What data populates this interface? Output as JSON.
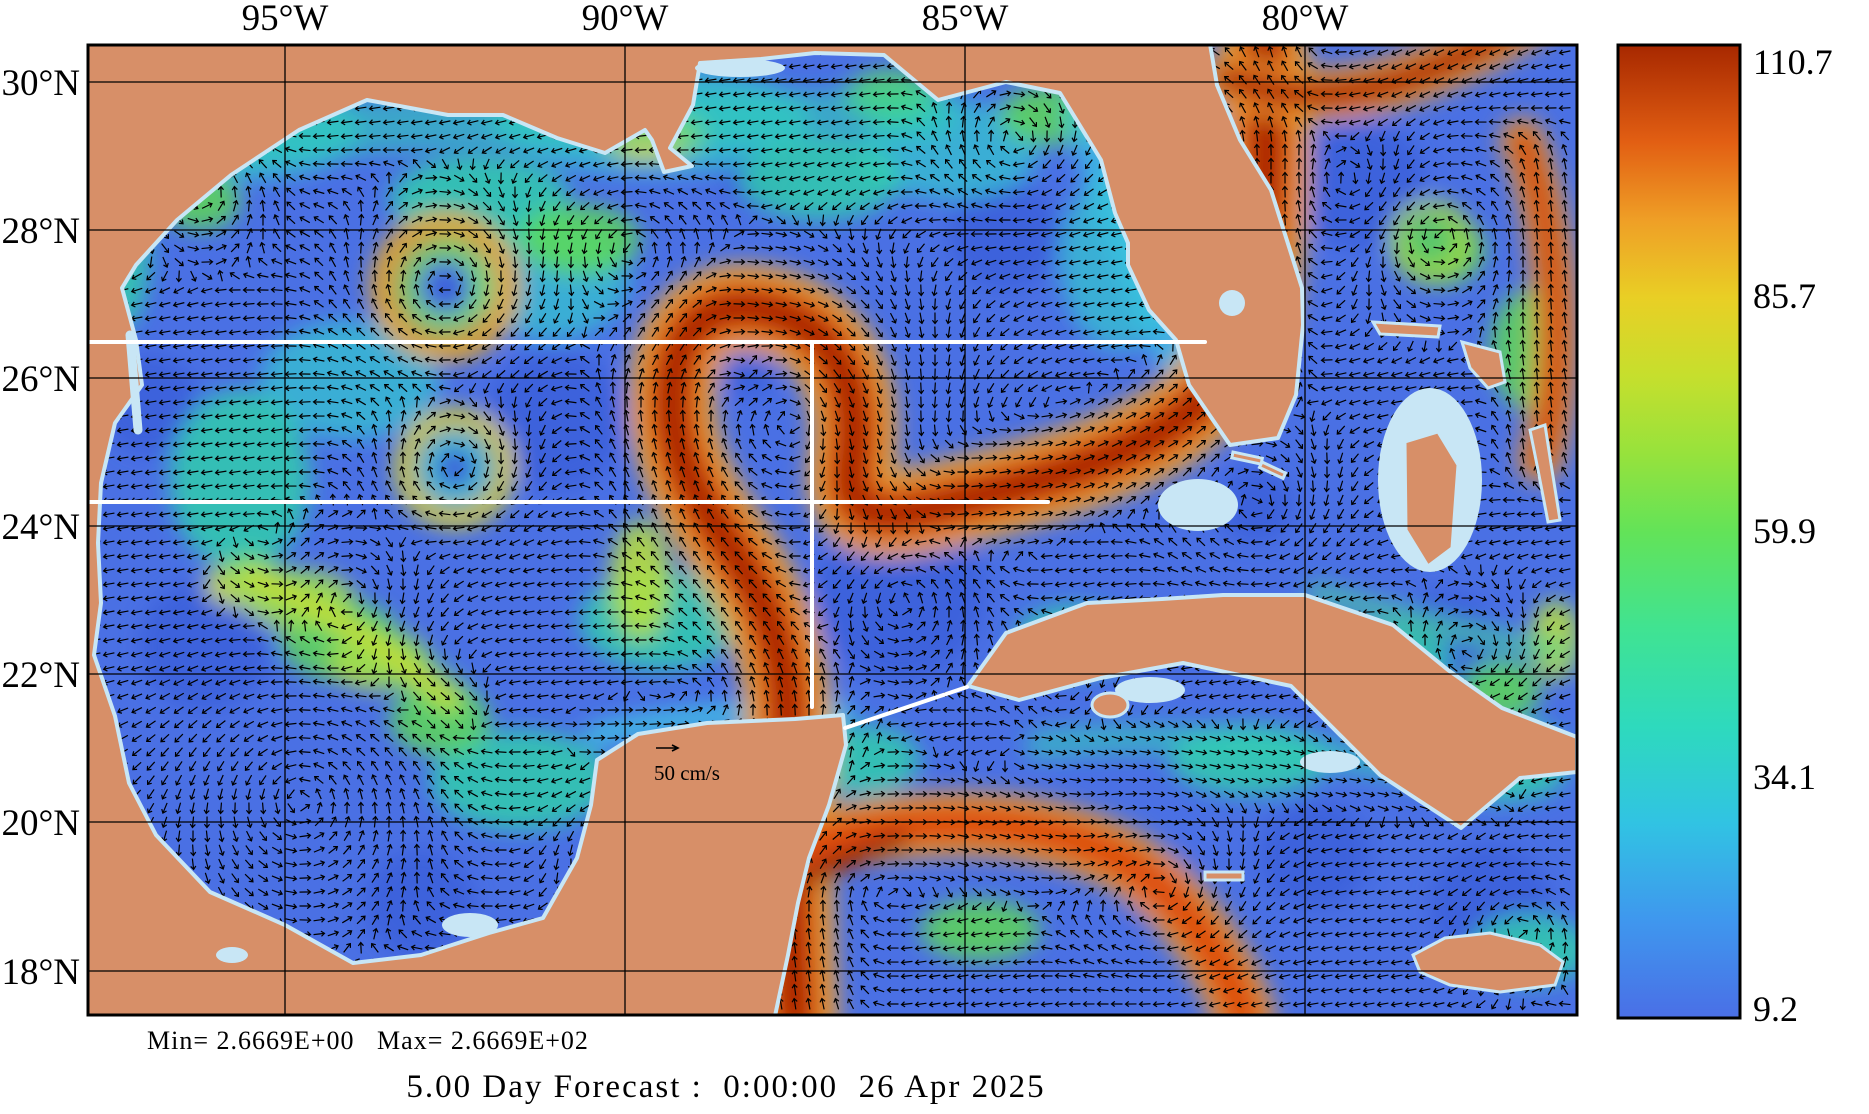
{
  "figure": {
    "title": "5.00 Day Forecast :  0:00:00  26 Apr 2025",
    "stats": "Min= 2.6669E+00   Max= 2.6669E+02",
    "scale_label": "50 cm/s"
  },
  "axes": {
    "lon": [
      "95°W",
      "90°W",
      "85°W",
      "80°W"
    ],
    "lat": [
      "30°N",
      "28°N",
      "26°N",
      "24°N",
      "22°N",
      "20°N",
      "18°N"
    ]
  },
  "colorbar": {
    "ticks": [
      "110.7",
      "85.7",
      "59.9",
      "34.1",
      "9.2"
    ]
  },
  "chart_data": {
    "type": "vector-field-map",
    "region": "Gulf of Mexico / Florida Straits / NW Caribbean",
    "lon_ticks_deg_w": [
      95,
      90,
      85,
      80
    ],
    "lat_ticks_deg_n": [
      30,
      28,
      26,
      24,
      22,
      20,
      18
    ],
    "colorbar_ticks_cm_s": [
      110.7,
      85.7,
      59.9,
      34.1,
      9.2
    ],
    "field_min": "2.6669E+00",
    "field_max": "2.6669E+02",
    "reference_vector": "50 cm/s",
    "forecast": {
      "lead": "5.00 Day",
      "valid_time": "0:00:00",
      "valid_date": "26 Apr 2025"
    }
  },
  "colors": {
    "land": "#d78f68",
    "shallow_water": "#c8e6f5",
    "ocean_base": "#4a70e4",
    "accent_max": "#a72800",
    "accent_min": "#4a6fe6"
  }
}
